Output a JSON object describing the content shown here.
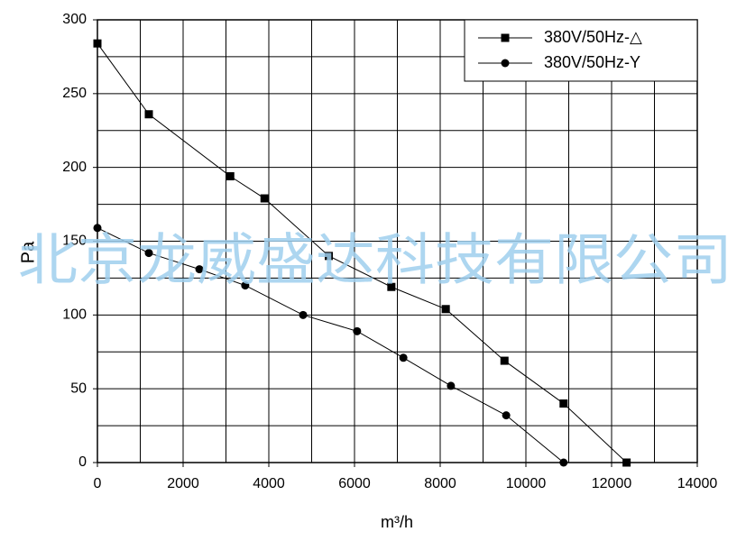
{
  "chart_data": {
    "type": "line",
    "x_label": "m³/h",
    "y_label": "Pa",
    "watermark": "北京龙威盛达科技有限公司",
    "xlim": [
      0,
      14000
    ],
    "ylim": [
      0,
      300
    ],
    "xticks": [
      0,
      2000,
      4000,
      6000,
      8000,
      10000,
      12000,
      14000
    ],
    "yticks": [
      0,
      50,
      100,
      150,
      200,
      250,
      300
    ],
    "xgrid": [
      1000,
      2000,
      3000,
      4000,
      5000,
      6000,
      7000,
      8000,
      9000,
      10000,
      11000,
      12000,
      13000
    ],
    "ygrid": [
      25,
      50,
      75,
      100,
      125,
      150,
      175,
      200,
      225,
      250,
      275
    ],
    "grid": true,
    "legend": "upper right",
    "series": [
      {
        "name": "380V/50Hz-△",
        "color": "#000000",
        "marker": "square",
        "x": [
          0,
          1200,
          3100,
          3900,
          5400,
          6860,
          8130,
          9500,
          10880,
          12350
        ],
        "values": [
          284,
          236,
          194,
          179,
          140,
          119,
          104,
          69,
          40,
          0
        ]
      },
      {
        "name": "380V/50Hz-Y",
        "color": "#000000",
        "marker": "circle",
        "x": [
          0,
          1200,
          2380,
          3450,
          4800,
          6060,
          7140,
          8250,
          9540,
          10880
        ],
        "values": [
          159,
          142,
          131,
          120,
          100,
          89,
          71,
          52,
          32,
          0
        ]
      }
    ]
  }
}
